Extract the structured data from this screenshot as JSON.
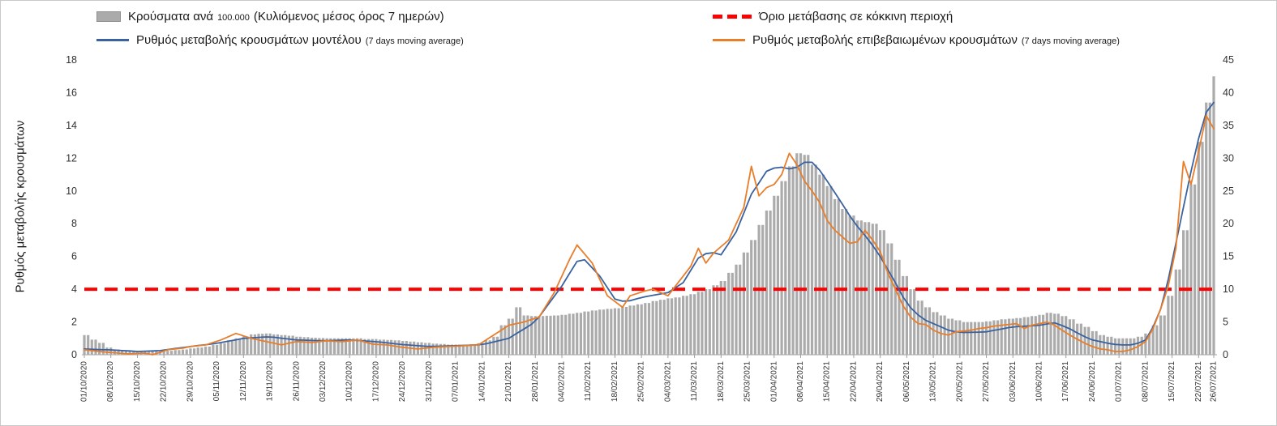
{
  "legend": {
    "items": [
      {
        "id": "cases-per-100k",
        "swatch": "bar",
        "color": "#ababab",
        "label_a": "Κρούσματα ανά",
        "label_small": "100.000",
        "label_b": "(Κυλιόμενος μέσος όρος 7 ημερών)"
      },
      {
        "id": "red-zone-threshold",
        "swatch": "dashed-line",
        "color": "#ff0000",
        "label": "Όριο μετάβασης σε κόκκινη περιοχή"
      },
      {
        "id": "model-rate",
        "swatch": "line",
        "color": "#3a62a0",
        "label": "Ρυθμός μεταβολής κρουσμάτων μοντέλου",
        "label_small": "(7 days moving average)"
      },
      {
        "id": "confirmed-rate",
        "swatch": "line",
        "color": "#e87d2a",
        "label": "Ρυθμός μεταβολής επιβεβαιωμένων κρουσμάτων",
        "label_small": "(7 days moving average)"
      }
    ]
  },
  "chart_data": {
    "type": "combo",
    "grid": false,
    "legend_position": "top",
    "x_start_date": "01/10/2020",
    "x_end_date": "26/07/2021",
    "total_days": 298,
    "sample_interval_days": 2,
    "x_tick_labels": [
      "01/10/2020",
      "08/10/2020",
      "15/10/2020",
      "22/10/2020",
      "29/10/2020",
      "05/11/2020",
      "12/11/2020",
      "19/11/2020",
      "26/11/2020",
      "03/12/2020",
      "10/12/2020",
      "17/12/2020",
      "24/12/2020",
      "31/12/2020",
      "07/01/2021",
      "14/01/2021",
      "21/01/2021",
      "28/01/2021",
      "04/02/2021",
      "11/02/2021",
      "18/02/2021",
      "25/02/2021",
      "04/03/2021",
      "11/03/2021",
      "18/03/2021",
      "25/03/2021",
      "01/04/2021",
      "08/04/2021",
      "15/04/2021",
      "22/04/2021",
      "29/04/2021",
      "06/05/2021",
      "13/05/2021",
      "20/05/2021",
      "27/05/2021",
      "03/06/2021",
      "10/06/2021",
      "17/06/2021",
      "24/06/2021",
      "01/07/2021",
      "08/07/2021",
      "15/07/2021",
      "22/07/2021",
      "26/07/2021"
    ],
    "left_axis": {
      "label": "Ρυθμός μεταβολής κρουσμάτων",
      "range": [
        0,
        18
      ],
      "ticks": [
        0,
        2,
        4,
        6,
        8,
        10,
        12,
        14,
        16,
        18
      ]
    },
    "right_axis": {
      "range": [
        0,
        45
      ],
      "ticks": [
        0,
        5,
        10,
        15,
        20,
        25,
        30,
        35,
        40,
        45
      ]
    },
    "threshold": {
      "axis": "left",
      "value": 4,
      "color": "#ff0000",
      "label": "Όριο μετάβασης σε κόκκινη περιοχή"
    },
    "series": [
      {
        "name": "Κρούσματα ανά 100.000 (Κυλιόμενος μέσος όρος 7 ημερών)",
        "type": "bar",
        "axis": "right",
        "color": "#ababab",
        "values": [
          3.0,
          2.3,
          1.8,
          1.1,
          0.8,
          0.6,
          0.5,
          0.5,
          0.45,
          0.5,
          0.5,
          0.6,
          0.7,
          0.8,
          0.95,
          1.1,
          1.25,
          1.5,
          1.75,
          2.2,
          2.5,
          2.8,
          3.1,
          3.2,
          3.25,
          3.1,
          3.0,
          2.9,
          2.75,
          2.7,
          2.6,
          2.55,
          2.5,
          2.5,
          2.5,
          2.5,
          2.5,
          2.4,
          2.4,
          2.3,
          2.25,
          2.2,
          2.1,
          2.0,
          1.9,
          1.8,
          1.7,
          1.65,
          1.55,
          1.55,
          1.55,
          1.6,
          1.75,
          2.2,
          2.75,
          4.5,
          5.5,
          7.25,
          6.0,
          5.9,
          5.9,
          5.95,
          6.0,
          6.1,
          6.25,
          6.4,
          6.6,
          6.75,
          6.9,
          7.0,
          7.1,
          7.3,
          7.5,
          7.7,
          7.9,
          8.2,
          8.4,
          8.6,
          8.75,
          9.0,
          9.25,
          9.6,
          10.0,
          10.6,
          11.25,
          12.5,
          13.75,
          15.6,
          17.5,
          19.8,
          22.0,
          24.25,
          26.5,
          28.75,
          30.75,
          30.5,
          29.0,
          27.5,
          25.75,
          23.75,
          22.25,
          21.25,
          20.5,
          20.25,
          20.0,
          19.0,
          17.0,
          14.5,
          12.0,
          10.0,
          8.25,
          7.25,
          6.5,
          6.0,
          5.5,
          5.25,
          5.0,
          5.0,
          5.0,
          5.1,
          5.25,
          5.4,
          5.5,
          5.6,
          5.75,
          5.9,
          6.1,
          6.4,
          6.25,
          5.9,
          5.4,
          4.75,
          4.25,
          3.6,
          3.0,
          2.75,
          2.5,
          2.5,
          2.5,
          2.75,
          3.25,
          4.5,
          6.0,
          9.0,
          13.0,
          19.0,
          26.0,
          32.5,
          38.5,
          42.5
        ]
      },
      {
        "name": "Ρυθμός μεταβολής κρουσμάτων μοντέλου (7 days moving average)",
        "type": "line",
        "axis": "left",
        "color": "#3a62a0",
        "values": [
          0.35,
          0.33,
          0.31,
          0.3,
          0.28,
          0.25,
          0.23,
          0.2,
          0.22,
          0.23,
          0.25,
          0.31,
          0.38,
          0.44,
          0.5,
          0.56,
          0.61,
          0.67,
          0.74,
          0.83,
          0.91,
          1.0,
          1.03,
          1.06,
          1.09,
          1.07,
          1.01,
          0.96,
          0.9,
          0.89,
          0.87,
          0.86,
          0.86,
          0.87,
          0.89,
          0.9,
          0.87,
          0.84,
          0.81,
          0.77,
          0.72,
          0.67,
          0.62,
          0.59,
          0.55,
          0.52,
          0.51,
          0.52,
          0.54,
          0.55,
          0.57,
          0.59,
          0.61,
          0.67,
          0.78,
          0.89,
          1.0,
          1.29,
          1.57,
          1.86,
          2.31,
          2.94,
          3.57,
          4.2,
          4.95,
          5.7,
          5.8,
          5.3,
          4.8,
          4.1,
          3.4,
          3.27,
          3.3,
          3.43,
          3.54,
          3.63,
          3.71,
          3.8,
          4.1,
          4.4,
          5.15,
          5.9,
          6.17,
          6.23,
          6.1,
          6.8,
          7.5,
          8.65,
          9.8,
          10.5,
          11.2,
          11.4,
          11.45,
          11.35,
          11.45,
          11.75,
          11.75,
          11.27,
          10.6,
          9.9,
          9.2,
          8.47,
          7.83,
          7.28,
          6.67,
          6.0,
          5.2,
          4.4,
          3.53,
          2.88,
          2.43,
          2.1,
          1.9,
          1.7,
          1.5,
          1.4,
          1.36,
          1.37,
          1.38,
          1.4,
          1.49,
          1.57,
          1.66,
          1.71,
          1.74,
          1.77,
          1.8,
          1.88,
          1.95,
          1.78,
          1.58,
          1.33,
          1.1,
          0.9,
          0.8,
          0.7,
          0.63,
          0.6,
          0.6,
          0.7,
          0.9,
          1.7,
          2.8,
          4.6,
          6.8,
          9.0,
          11.2,
          13.2,
          14.8,
          15.4
        ]
      },
      {
        "name": "Ρυθμός μεταβολής επιβεβαιωμένων κρουσμάτων (7 days moving average)",
        "type": "line",
        "axis": "left",
        "color": "#e87d2a",
        "values": [
          0.3,
          0.25,
          0.2,
          0.16,
          0.12,
          0.08,
          0.05,
          0.08,
          0.1,
          0.0,
          0.15,
          0.3,
          0.35,
          0.4,
          0.5,
          0.55,
          0.6,
          0.75,
          0.9,
          1.1,
          1.3,
          1.15,
          1.0,
          0.9,
          0.8,
          0.7,
          0.6,
          0.7,
          0.8,
          0.78,
          0.75,
          0.8,
          0.85,
          0.82,
          0.8,
          0.85,
          0.9,
          0.78,
          0.65,
          0.62,
          0.6,
          0.52,
          0.45,
          0.4,
          0.35,
          0.4,
          0.45,
          0.48,
          0.5,
          0.52,
          0.55,
          0.58,
          0.6,
          0.9,
          1.2,
          1.5,
          1.8,
          1.9,
          2.0,
          2.15,
          2.3,
          3.05,
          3.8,
          4.8,
          5.8,
          6.7,
          6.15,
          5.6,
          4.6,
          3.6,
          3.25,
          2.9,
          3.6,
          3.75,
          3.9,
          4.0,
          3.8,
          3.6,
          4.2,
          4.8,
          5.4,
          6.5,
          5.6,
          6.2,
          6.6,
          7.0,
          8.0,
          9.0,
          11.5,
          9.7,
          10.2,
          10.4,
          11.0,
          12.3,
          11.6,
          10.6,
          10.0,
          9.3,
          8.2,
          7.6,
          7.2,
          6.8,
          6.9,
          7.6,
          7.0,
          6.3,
          5.0,
          4.0,
          3.0,
          2.3,
          1.9,
          1.85,
          1.5,
          1.3,
          1.2,
          1.4,
          1.45,
          1.5,
          1.6,
          1.65,
          1.75,
          1.8,
          1.85,
          1.9,
          1.6,
          1.8,
          1.9,
          2.0,
          1.8,
          1.5,
          1.2,
          0.95,
          0.7,
          0.5,
          0.35,
          0.3,
          0.2,
          0.2,
          0.3,
          0.5,
          0.8,
          1.6,
          2.8,
          4.2,
          6.5,
          11.8,
          10.4,
          12.4,
          14.6,
          13.8
        ]
      }
    ]
  }
}
